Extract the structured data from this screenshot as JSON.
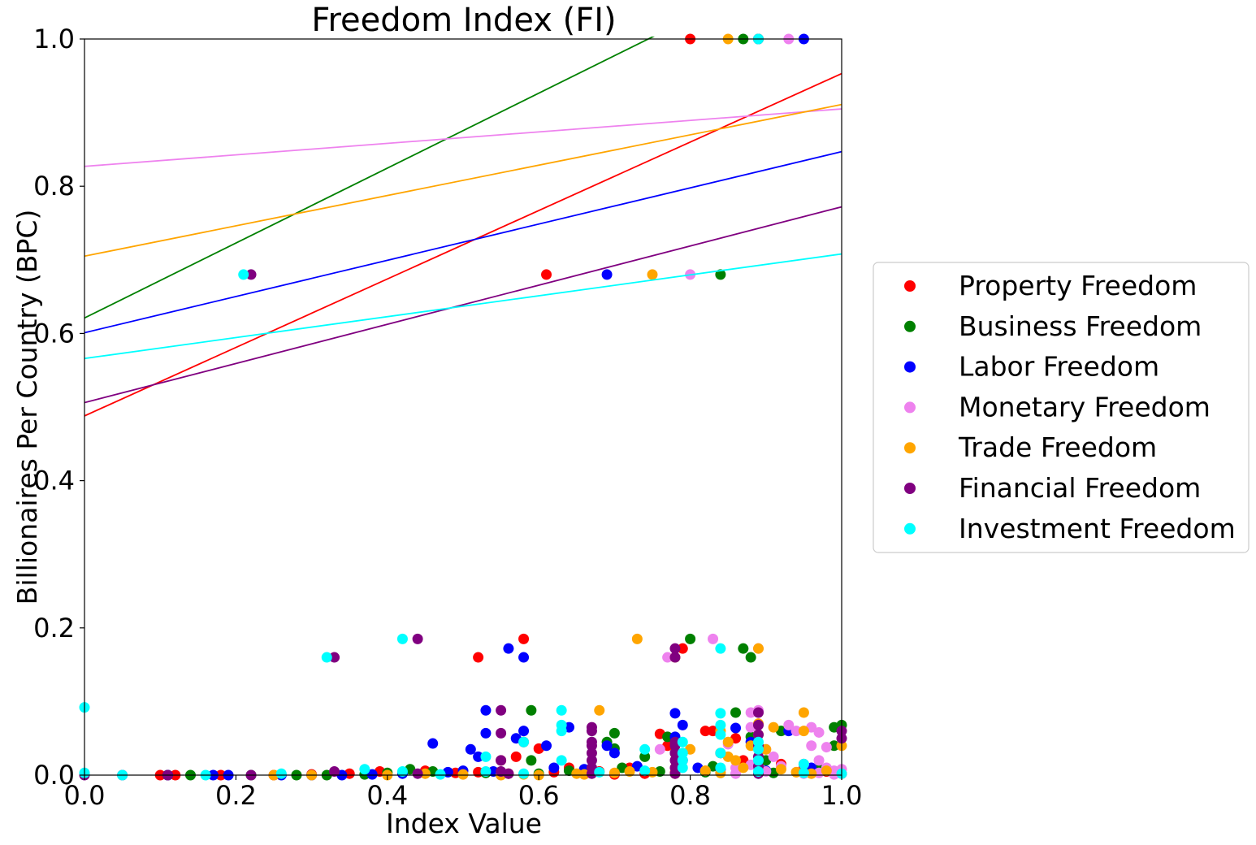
{
  "chart_data": {
    "type": "scatter",
    "title": "Freedom Index (FI)",
    "xlabel": "Index Value",
    "ylabel": "Billionaires Per Country (BPC)",
    "xlim": [
      0.0,
      1.0
    ],
    "ylim": [
      0.0,
      1.0
    ],
    "xticks": [
      "0.0",
      "0.2",
      "0.4",
      "0.6",
      "0.8",
      "1.0"
    ],
    "yticks": [
      "0.0",
      "0.2",
      "0.4",
      "0.6",
      "0.8",
      "1.0"
    ],
    "grid": false,
    "legend_position": "right",
    "series": [
      {
        "name": "Property Freedom",
        "color": "#ff0000",
        "trend": [
          0.488,
          0.953
        ],
        "points": [
          [
            0.8,
            1.0
          ],
          [
            0.61,
            0.68
          ],
          [
            0.58,
            0.185
          ],
          [
            0.52,
            0.16
          ],
          [
            0.79,
            0.172
          ],
          [
            0.82,
            0.06
          ],
          [
            0.83,
            0.06
          ],
          [
            0.86,
            0.05
          ],
          [
            0.76,
            0.056
          ],
          [
            0.77,
            0.04
          ],
          [
            0.6,
            0.036
          ],
          [
            0.58,
            0.045
          ],
          [
            0.55,
            0.02
          ],
          [
            0.57,
            0.025
          ],
          [
            0.64,
            0.01
          ],
          [
            0.68,
            0.005
          ],
          [
            0.72,
            0.01
          ],
          [
            0.74,
            0.002
          ],
          [
            0.84,
            0.03
          ],
          [
            0.87,
            0.02
          ],
          [
            0.39,
            0.005
          ],
          [
            0.45,
            0.006
          ],
          [
            0.49,
            0.003
          ],
          [
            0.52,
            0.004
          ],
          [
            0.35,
            0.002
          ],
          [
            0.3,
            0.001
          ],
          [
            0.25,
            0.0
          ],
          [
            0.18,
            0.0
          ],
          [
            0.12,
            0.0
          ],
          [
            0.1,
            0.0
          ],
          [
            0.56,
            0.002
          ],
          [
            0.62,
            0.004
          ],
          [
            0.66,
            0.002
          ],
          [
            0.7,
            0.001
          ],
          [
            0.78,
            0.003
          ],
          [
            0.89,
            0.01
          ],
          [
            0.92,
            0.015
          ],
          [
            0.95,
            0.01
          ],
          [
            0.98,
            0.005
          ],
          [
            1.0,
            0.002
          ]
        ]
      },
      {
        "name": "Business Freedom",
        "color": "#008000",
        "trend": [
          0.621,
          1.13
        ],
        "points": [
          [
            0.87,
            1.0
          ],
          [
            0.89,
            1.0
          ],
          [
            0.84,
            0.68
          ],
          [
            0.8,
            0.185
          ],
          [
            0.87,
            0.172
          ],
          [
            0.88,
            0.16
          ],
          [
            0.59,
            0.088
          ],
          [
            0.7,
            0.057
          ],
          [
            0.77,
            0.052
          ],
          [
            0.78,
            0.03
          ],
          [
            0.86,
            0.085
          ],
          [
            0.88,
            0.052
          ],
          [
            0.92,
            0.06
          ],
          [
            0.99,
            0.065
          ],
          [
            1.0,
            0.068
          ],
          [
            0.99,
            0.04
          ],
          [
            0.7,
            0.036
          ],
          [
            0.69,
            0.045
          ],
          [
            0.74,
            0.025
          ],
          [
            0.59,
            0.02
          ],
          [
            0.43,
            0.008
          ],
          [
            0.46,
            0.005
          ],
          [
            0.4,
            0.003
          ],
          [
            0.37,
            0.001
          ],
          [
            0.32,
            0.0
          ],
          [
            0.28,
            0.0
          ],
          [
            0.22,
            0.0
          ],
          [
            0.14,
            0.0
          ],
          [
            0.11,
            0.0
          ],
          [
            0.64,
            0.006
          ],
          [
            0.71,
            0.01
          ],
          [
            0.83,
            0.012
          ],
          [
            0.9,
            0.02
          ],
          [
            0.95,
            0.015
          ],
          [
            0.97,
            0.008
          ],
          [
            0.53,
            0.003
          ],
          [
            0.6,
            0.002
          ],
          [
            0.76,
            0.005
          ],
          [
            0.82,
            0.004
          ],
          [
            0.91,
            0.003
          ]
        ]
      },
      {
        "name": "Labor Freedom",
        "color": "#0000ff",
        "trend": [
          0.601,
          0.847
        ],
        "points": [
          [
            0.95,
            1.0
          ],
          [
            0.69,
            0.68
          ],
          [
            0.56,
            0.172
          ],
          [
            0.58,
            0.16
          ],
          [
            0.53,
            0.088
          ],
          [
            0.46,
            0.043
          ],
          [
            0.51,
            0.035
          ],
          [
            0.52,
            0.025
          ],
          [
            0.53,
            0.057
          ],
          [
            0.57,
            0.05
          ],
          [
            0.58,
            0.06
          ],
          [
            0.61,
            0.04
          ],
          [
            0.64,
            0.065
          ],
          [
            0.69,
            0.04
          ],
          [
            0.7,
            0.03
          ],
          [
            0.78,
            0.084
          ],
          [
            0.79,
            0.068
          ],
          [
            0.78,
            0.052
          ],
          [
            0.79,
            0.02
          ],
          [
            0.86,
            0.064
          ],
          [
            0.88,
            0.045
          ],
          [
            0.93,
            0.06
          ],
          [
            0.54,
            0.005
          ],
          [
            0.5,
            0.006
          ],
          [
            0.48,
            0.004
          ],
          [
            0.42,
            0.002
          ],
          [
            0.38,
            0.001
          ],
          [
            0.34,
            0.0
          ],
          [
            0.3,
            0.0
          ],
          [
            0.26,
            0.0
          ],
          [
            0.19,
            0.0
          ],
          [
            0.17,
            0.0
          ],
          [
            0.11,
            0.0
          ],
          [
            0.62,
            0.01
          ],
          [
            0.66,
            0.008
          ],
          [
            0.73,
            0.012
          ],
          [
            0.81,
            0.01
          ],
          [
            0.84,
            0.008
          ],
          [
            0.9,
            0.006
          ],
          [
            0.96,
            0.01
          ]
        ]
      },
      {
        "name": "Monetary Freedom",
        "color": "#ee82ee",
        "trend": [
          0.827,
          0.905
        ],
        "points": [
          [
            0.93,
            1.0
          ],
          [
            0.8,
            0.68
          ],
          [
            0.83,
            0.185
          ],
          [
            0.89,
            0.172
          ],
          [
            0.77,
            0.16
          ],
          [
            0.88,
            0.085
          ],
          [
            0.88,
            0.065
          ],
          [
            0.85,
            0.042
          ],
          [
            0.9,
            0.035
          ],
          [
            0.93,
            0.068
          ],
          [
            0.94,
            0.06
          ],
          [
            0.96,
            0.065
          ],
          [
            0.97,
            0.058
          ],
          [
            0.96,
            0.04
          ],
          [
            0.98,
            0.038
          ],
          [
            0.97,
            0.02
          ],
          [
            0.95,
            0.015
          ],
          [
            0.98,
            0.01
          ],
          [
            0.99,
            0.006
          ],
          [
            1.0,
            0.008
          ],
          [
            0.92,
            0.012
          ],
          [
            0.91,
            0.025
          ],
          [
            0.89,
            0.088
          ],
          [
            0.76,
            0.035
          ],
          [
            0.79,
            0.02
          ],
          [
            0.82,
            0.006
          ],
          [
            0.86,
            0.01
          ],
          [
            0.88,
            0.014
          ],
          [
            0.9,
            0.005
          ],
          [
            0.94,
            0.004
          ],
          [
            0.95,
            0.002
          ],
          [
            0.97,
            0.003
          ],
          [
            0.99,
            0.001
          ],
          [
            0.86,
            0.002
          ],
          [
            0.84,
            0.003
          ]
        ]
      },
      {
        "name": "Trade Freedom",
        "color": "#ffa500",
        "trend": [
          0.705,
          0.911
        ],
        "points": [
          [
            0.85,
            1.0
          ],
          [
            0.75,
            0.68
          ],
          [
            0.73,
            0.185
          ],
          [
            0.78,
            0.16
          ],
          [
            0.89,
            0.172
          ],
          [
            0.68,
            0.088
          ],
          [
            0.95,
            0.085
          ],
          [
            0.89,
            0.07
          ],
          [
            0.91,
            0.065
          ],
          [
            0.95,
            0.06
          ],
          [
            0.8,
            0.035
          ],
          [
            0.84,
            0.06
          ],
          [
            0.85,
            0.025
          ],
          [
            0.86,
            0.02
          ],
          [
            0.88,
            0.04
          ],
          [
            0.9,
            0.035
          ],
          [
            0.89,
            0.055
          ],
          [
            0.85,
            0.045
          ],
          [
            1.0,
            0.04
          ],
          [
            0.87,
            0.01
          ],
          [
            0.25,
            0.0
          ],
          [
            0.3,
            0.0
          ],
          [
            0.4,
            0.0
          ],
          [
            0.45,
            0.002
          ],
          [
            0.5,
            0.001
          ],
          [
            0.55,
            0.0
          ],
          [
            0.6,
            0.0
          ],
          [
            0.65,
            0.002
          ],
          [
            0.7,
            0.003
          ],
          [
            0.72,
            0.005
          ],
          [
            0.75,
            0.004
          ],
          [
            0.78,
            0.002
          ],
          [
            0.82,
            0.006
          ],
          [
            0.84,
            0.003
          ],
          [
            0.92,
            0.008
          ],
          [
            0.94,
            0.004
          ],
          [
            0.96,
            0.002
          ],
          [
            0.98,
            0.006
          ],
          [
            0.66,
            0.001
          ],
          [
            0.58,
            0.001
          ]
        ]
      },
      {
        "name": "Financial Freedom",
        "color": "#800080",
        "trend": [
          0.506,
          0.772
        ],
        "points": [
          [
            0.89,
            1.0
          ],
          [
            0.22,
            0.68
          ],
          [
            0.44,
            0.185
          ],
          [
            0.33,
            0.16
          ],
          [
            0.78,
            0.172
          ],
          [
            0.78,
            0.16
          ],
          [
            0.55,
            0.088
          ],
          [
            0.55,
            0.057
          ],
          [
            0.67,
            0.065
          ],
          [
            0.67,
            0.06
          ],
          [
            0.67,
            0.045
          ],
          [
            0.67,
            0.04
          ],
          [
            0.67,
            0.03
          ],
          [
            0.67,
            0.02
          ],
          [
            0.67,
            0.01
          ],
          [
            0.78,
            0.045
          ],
          [
            0.78,
            0.04
          ],
          [
            0.78,
            0.03
          ],
          [
            0.78,
            0.02
          ],
          [
            0.78,
            0.01
          ],
          [
            0.89,
            0.085
          ],
          [
            0.89,
            0.068
          ],
          [
            0.89,
            0.055
          ],
          [
            0.89,
            0.04
          ],
          [
            0.89,
            0.025
          ],
          [
            0.89,
            0.012
          ],
          [
            1.0,
            0.06
          ],
          [
            1.0,
            0.05
          ],
          [
            0.33,
            0.005
          ],
          [
            0.44,
            0.002
          ],
          [
            0.55,
            0.02
          ],
          [
            0.55,
            0.005
          ],
          [
            0.22,
            0.0
          ],
          [
            0.11,
            0.0
          ],
          [
            0.05,
            0.0
          ],
          [
            0.0,
            0.0
          ],
          [
            0.56,
            0.002
          ],
          [
            0.67,
            0.002
          ],
          [
            0.78,
            0.002
          ],
          [
            0.89,
            0.002
          ]
        ]
      },
      {
        "name": "Investment Freedom",
        "color": "#00ffff",
        "trend": [
          0.566,
          0.708
        ],
        "points": [
          [
            0.89,
            1.0
          ],
          [
            0.21,
            0.68
          ],
          [
            0.42,
            0.185
          ],
          [
            0.32,
            0.16
          ],
          [
            0.84,
            0.172
          ],
          [
            0.0,
            0.092
          ],
          [
            0.63,
            0.088
          ],
          [
            0.63,
            0.068
          ],
          [
            0.63,
            0.06
          ],
          [
            0.53,
            0.025
          ],
          [
            0.63,
            0.02
          ],
          [
            0.58,
            0.045
          ],
          [
            0.74,
            0.035
          ],
          [
            0.79,
            0.045
          ],
          [
            0.79,
            0.03
          ],
          [
            0.79,
            0.02
          ],
          [
            0.79,
            0.01
          ],
          [
            0.84,
            0.084
          ],
          [
            0.84,
            0.068
          ],
          [
            0.84,
            0.055
          ],
          [
            0.84,
            0.03
          ],
          [
            0.84,
            0.01
          ],
          [
            0.89,
            0.045
          ],
          [
            0.89,
            0.035
          ],
          [
            0.89,
            0.02
          ],
          [
            0.95,
            0.015
          ],
          [
            0.42,
            0.005
          ],
          [
            0.37,
            0.008
          ],
          [
            0.26,
            0.002
          ],
          [
            0.16,
            0.0
          ],
          [
            0.05,
            0.0
          ],
          [
            0.0,
            0.003
          ],
          [
            0.47,
            0.001
          ],
          [
            0.53,
            0.005
          ],
          [
            0.58,
            0.002
          ],
          [
            0.68,
            0.004
          ],
          [
            0.74,
            0.006
          ],
          [
            0.95,
            0.003
          ],
          [
            1.0,
            0.002
          ],
          [
            0.89,
            0.005
          ]
        ]
      }
    ]
  }
}
